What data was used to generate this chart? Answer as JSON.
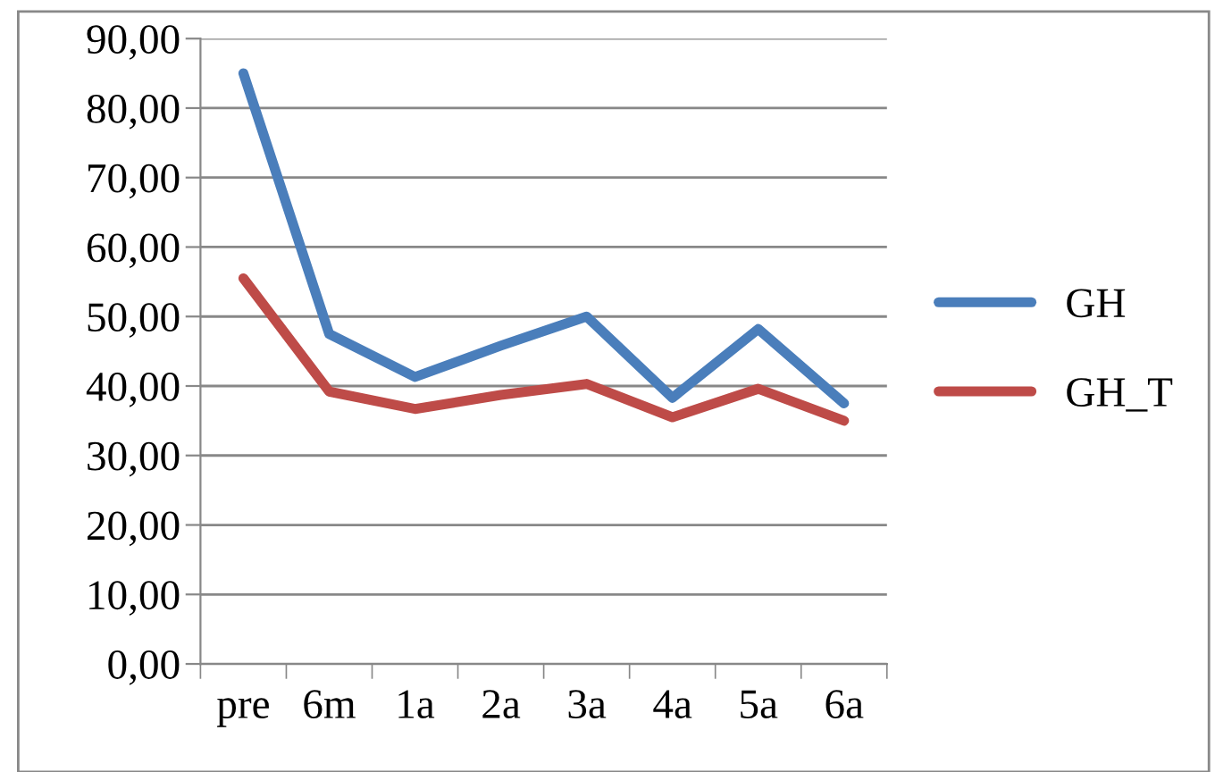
{
  "chart_data": {
    "type": "line",
    "categories": [
      "pre",
      "6m",
      "1a",
      "2a",
      "3a",
      "4a",
      "5a",
      "6a"
    ],
    "series": [
      {
        "name": "GH",
        "color": "#4a7ebb",
        "values": [
          85,
          47.5,
          41.3,
          45.8,
          50,
          38.3,
          48.2,
          37.5
        ]
      },
      {
        "name": "GH_T",
        "color": "#be4b48",
        "values": [
          55.5,
          39.2,
          36.7,
          38.7,
          40.3,
          35.5,
          39.6,
          35
        ]
      }
    ],
    "ylim": [
      0,
      90
    ],
    "yticks": [
      {
        "value": 0,
        "label": "0,00"
      },
      {
        "value": 10,
        "label": "10,00"
      },
      {
        "value": 20,
        "label": "20,00"
      },
      {
        "value": 30,
        "label": "30,00"
      },
      {
        "value": 40,
        "label": "40,00"
      },
      {
        "value": 50,
        "label": "50,00"
      },
      {
        "value": 60,
        "label": "60,00"
      },
      {
        "value": 70,
        "label": "70,00"
      },
      {
        "value": 80,
        "label": "80,00"
      },
      {
        "value": 90,
        "label": "90,00"
      }
    ],
    "grid": "y",
    "legend": "right",
    "marker": "none",
    "line_style": "solid"
  }
}
